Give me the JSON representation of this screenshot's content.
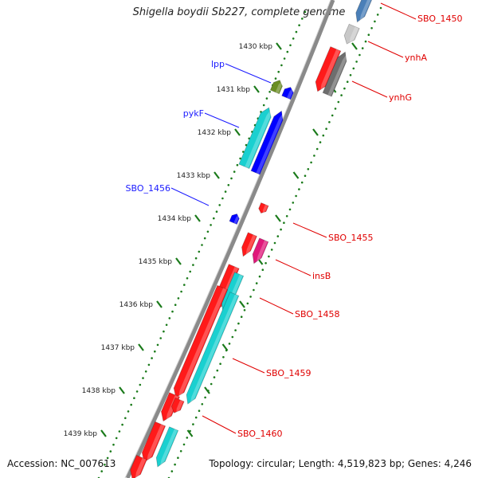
{
  "title": "Shigella boydii Sb227, complete genome",
  "accession": "Accession: NC_007613",
  "topology": "Topology: circular; Length: 4,519,823 bp; Genes: 4,246",
  "ticks": [
    "1430 kbp",
    "1431 kbp",
    "1432 kbp",
    "1433 kbp",
    "1434 kbp",
    "1435 kbp",
    "1436 kbp",
    "1437 kbp",
    "1438 kbp",
    "1439 kbp"
  ],
  "genes_left": [
    {
      "label": "lpp",
      "color": "#1a1aff"
    },
    {
      "label": "pykF",
      "color": "#1a1aff"
    },
    {
      "label": "SBO_1456",
      "color": "#1a1aff"
    }
  ],
  "genes_right": [
    {
      "label": "SBO_1450",
      "color": "#e00000"
    },
    {
      "label": "ynhA",
      "color": "#e00000"
    },
    {
      "label": "ynhG",
      "color": "#e00000"
    },
    {
      "label": "SBO_1455",
      "color": "#e00000"
    },
    {
      "label": "insB",
      "color": "#e00000"
    },
    {
      "label": "SBO_1458",
      "color": "#e00000"
    },
    {
      "label": "SBO_1459",
      "color": "#e00000"
    },
    {
      "label": "SBO_1460",
      "color": "#e00000"
    }
  ],
  "colors": {
    "backbone": "#8a8a8a",
    "tick": "#1a7a1a",
    "red": "#ff1a1a",
    "blue": "#0000ff",
    "cyan": "#1ad0d0",
    "olive": "#6b8e23",
    "magenta": "#e0177a",
    "gray": "#6e6e6e",
    "lightgray": "#c8c8c8",
    "steelblue": "#4a7fb8"
  }
}
